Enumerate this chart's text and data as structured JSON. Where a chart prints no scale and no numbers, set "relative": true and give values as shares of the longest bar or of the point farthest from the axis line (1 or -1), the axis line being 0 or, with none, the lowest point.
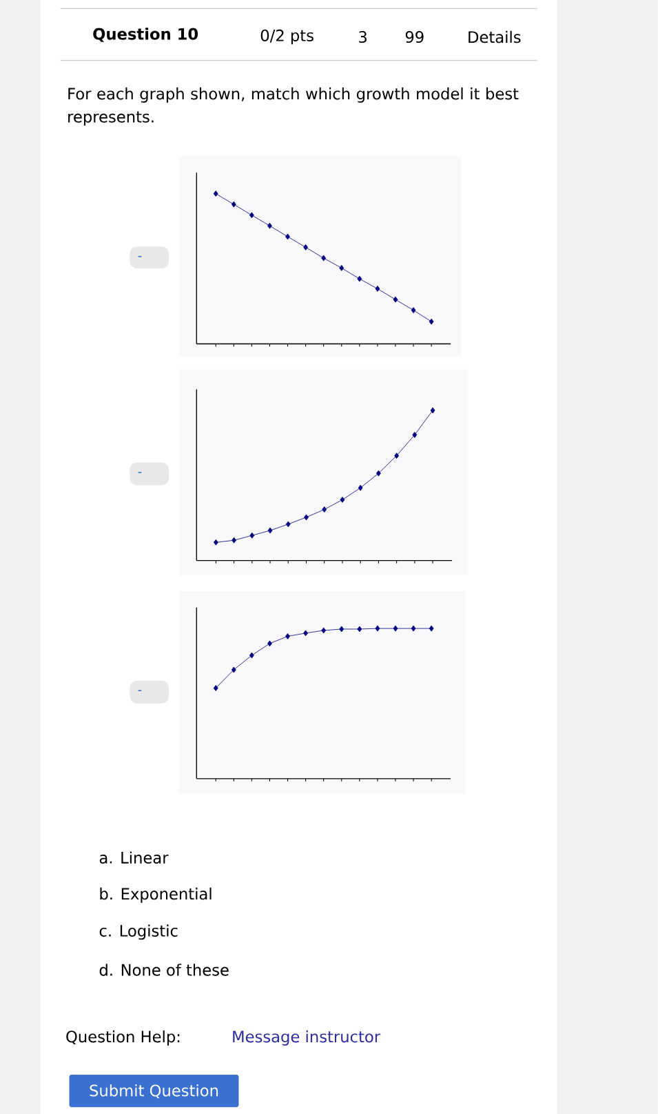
{
  "chart_data": [
    {
      "type": "line",
      "relative": true,
      "marker": "diamond",
      "line_style": "solid",
      "categories": [
        null,
        null,
        null,
        null,
        null,
        null,
        null,
        null,
        null,
        null,
        null,
        null,
        null
      ],
      "series": [
        {
          "color": "#000080",
          "values": [
            1,
            0.929,
            0.857,
            0.786,
            0.714,
            0.643,
            0.571,
            0.505,
            0.433,
            0.367,
            0.295,
            0.224,
            0.148
          ]
        }
      ],
      "annotations": [
        "Question 10",
        "0/2 pts",
        "3",
        "99",
        "Details",
        "For each graph shown, match which growth model it best represents.",
        "-"
      ]
    },
    {
      "type": "line",
      "relative": true,
      "marker": "diamond",
      "line_style": "solid",
      "categories": [
        null,
        null,
        null,
        null,
        null,
        null,
        null,
        null,
        null,
        null,
        null,
        null,
        null
      ],
      "series": [
        {
          "color": "#000080",
          "values": [
            0.121,
            0.135,
            0.167,
            0.2,
            0.242,
            0.288,
            0.34,
            0.405,
            0.484,
            0.581,
            0.698,
            0.837,
            1
          ]
        }
      ],
      "annotations": [
        "-"
      ]
    },
    {
      "type": "line",
      "relative": true,
      "marker": "diamond",
      "line_style": "solid",
      "categories": [
        null,
        null,
        null,
        null,
        null,
        null,
        null,
        null,
        null,
        null,
        null,
        null,
        null
      ],
      "series": [
        {
          "color": "#000080",
          "values": [
            0.603,
            0.725,
            0.821,
            0.9,
            0.948,
            0.969,
            0.987,
            0.996,
            0.996,
            1,
            1,
            1,
            1
          ]
        }
      ],
      "annotations": [
        "-",
        "a. Linear",
        "b. Exponential",
        "c. Logistic",
        "d. None of these",
        "Question Help:",
        "Message instructor",
        "Submit Question"
      ]
    }
  ]
}
